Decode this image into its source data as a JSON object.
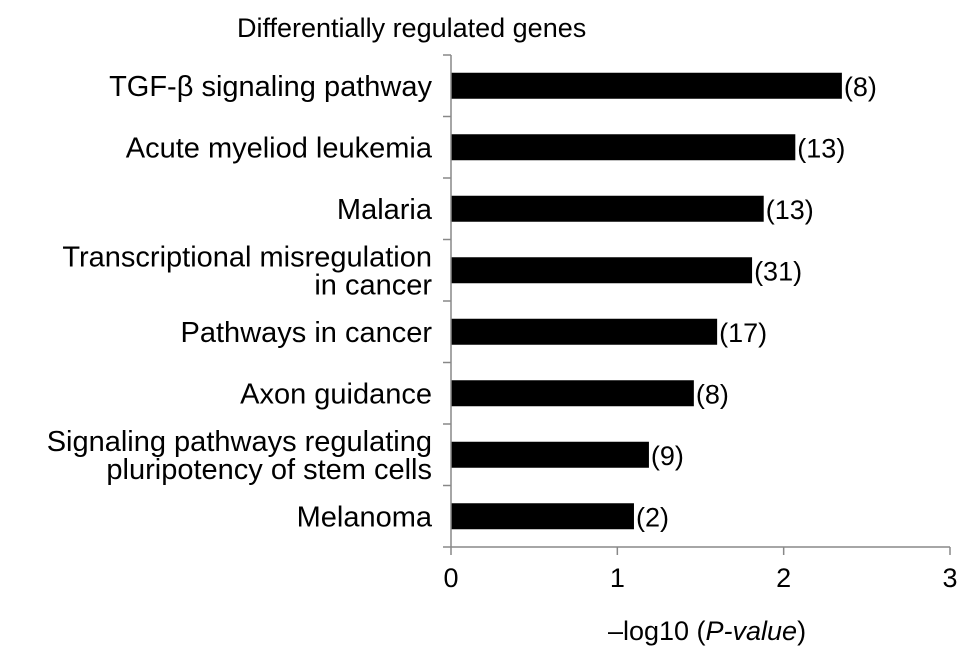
{
  "chart_data": {
    "type": "bar",
    "orientation": "horizontal",
    "title": "Differentially regulated genes",
    "xlabel": {
      "prefix": "–log10 (",
      "emphasis": "P-value",
      "suffix": ")"
    },
    "categories": [
      [
        "TGF-β signaling pathway"
      ],
      [
        "Acute myeliod leukemia"
      ],
      [
        "Malaria"
      ],
      [
        "Transcriptional misregulation",
        "in cancer"
      ],
      [
        "Pathways in cancer"
      ],
      [
        "Axon guidance"
      ],
      [
        "Signaling pathways regulating",
        "pluripotency of stem cells"
      ],
      [
        "Melanoma"
      ]
    ],
    "values": [
      2.35,
      2.07,
      1.88,
      1.81,
      1.6,
      1.46,
      1.19,
      1.1
    ],
    "data_labels": [
      "(8)",
      "(13)",
      "(13)",
      "(31)",
      "(17)",
      "(8)",
      "(9)",
      "(2)"
    ],
    "xlim": [
      0,
      3
    ],
    "xticks": [
      0,
      1,
      2,
      3
    ],
    "xtick_labels": [
      "0",
      "1",
      "2",
      "3"
    ],
    "bar_color": "#000000",
    "grid": false,
    "legend": "none"
  }
}
